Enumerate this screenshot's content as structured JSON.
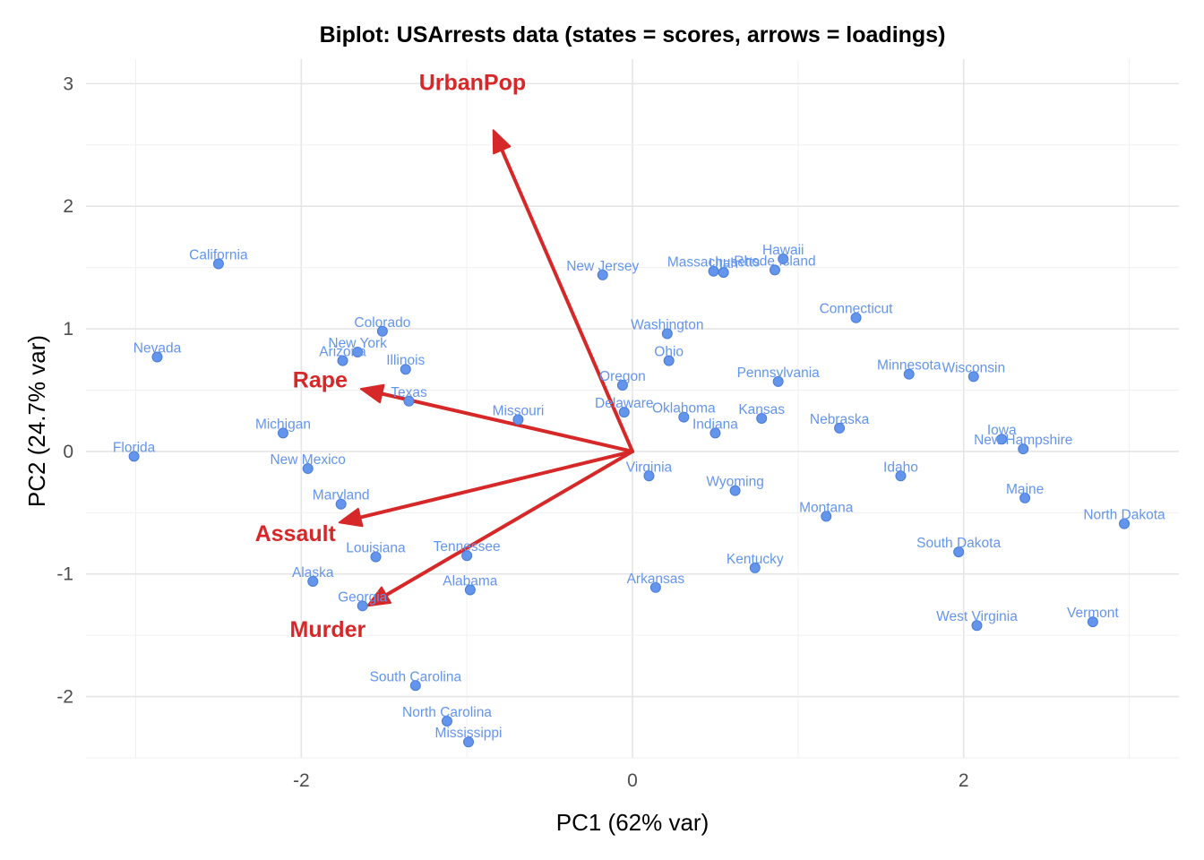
{
  "chart_data": {
    "type": "scatter",
    "title": "Biplot: USArrests data (states = scores, arrows = loadings)",
    "xlabel": "PC1 (62% var)",
    "ylabel": "PC2 (24.7% var)",
    "xlim": [
      -3.3,
      3.3
    ],
    "ylim": [
      -2.5,
      3.2
    ],
    "x_ticks": [
      -2,
      0,
      2
    ],
    "y_ticks": [
      -2,
      -1,
      0,
      1,
      2,
      3
    ],
    "grid": true,
    "colors": {
      "points": "#6495ED",
      "point_stroke": "#4a7bd6",
      "labels": "#6495ED",
      "arrows": "#D62828"
    },
    "states": [
      {
        "name": "California",
        "x": -2.5,
        "y": 1.53
      },
      {
        "name": "Nevada",
        "x": -2.87,
        "y": 0.77
      },
      {
        "name": "Florida",
        "x": -3.01,
        "y": -0.04
      },
      {
        "name": "Colorado",
        "x": -1.51,
        "y": 0.98
      },
      {
        "name": "New York",
        "x": -1.66,
        "y": 0.81
      },
      {
        "name": "Arizona",
        "x": -1.75,
        "y": 0.74
      },
      {
        "name": "Illinois",
        "x": -1.37,
        "y": 0.67
      },
      {
        "name": "Texas",
        "x": -1.35,
        "y": 0.41
      },
      {
        "name": "Michigan",
        "x": -2.11,
        "y": 0.15
      },
      {
        "name": "New Mexico",
        "x": -1.96,
        "y": -0.14
      },
      {
        "name": "Maryland",
        "x": -1.76,
        "y": -0.43
      },
      {
        "name": "Louisiana",
        "x": -1.55,
        "y": -0.86
      },
      {
        "name": "Alaska",
        "x": -1.93,
        "y": -1.06
      },
      {
        "name": "Georgia",
        "x": -1.63,
        "y": -1.26
      },
      {
        "name": "Tennessee",
        "x": -1.0,
        "y": -0.85
      },
      {
        "name": "Alabama",
        "x": -0.98,
        "y": -1.13
      },
      {
        "name": "South Carolina",
        "x": -1.31,
        "y": -1.91
      },
      {
        "name": "North Carolina",
        "x": -1.12,
        "y": -2.2
      },
      {
        "name": "Mississippi",
        "x": -0.99,
        "y": -2.37
      },
      {
        "name": "Missouri",
        "x": -0.69,
        "y": 0.26
      },
      {
        "name": "New Jersey",
        "x": -0.18,
        "y": 1.44
      },
      {
        "name": "Oregon",
        "x": -0.06,
        "y": 0.54
      },
      {
        "name": "Delaware",
        "x": -0.05,
        "y": 0.32
      },
      {
        "name": "Virginia",
        "x": 0.1,
        "y": -0.2
      },
      {
        "name": "Arkansas",
        "x": 0.14,
        "y": -1.11
      },
      {
        "name": "Washington",
        "x": 0.21,
        "y": 0.96
      },
      {
        "name": "Ohio",
        "x": 0.22,
        "y": 0.74
      },
      {
        "name": "Oklahoma",
        "x": 0.31,
        "y": 0.28
      },
      {
        "name": "Indiana",
        "x": 0.5,
        "y": 0.15
      },
      {
        "name": "Massachusetts",
        "x": 0.49,
        "y": 1.47
      },
      {
        "name": "Utah",
        "x": 0.55,
        "y": 1.46
      },
      {
        "name": "Rhode Island",
        "x": 0.86,
        "y": 1.48
      },
      {
        "name": "Hawaii",
        "x": 0.91,
        "y": 1.57
      },
      {
        "name": "Wyoming",
        "x": 0.62,
        "y": -0.32
      },
      {
        "name": "Kansas",
        "x": 0.78,
        "y": 0.27
      },
      {
        "name": "Pennsylvania",
        "x": 0.88,
        "y": 0.57
      },
      {
        "name": "Kentucky",
        "x": 0.74,
        "y": -0.95
      },
      {
        "name": "Montana",
        "x": 1.17,
        "y": -0.53
      },
      {
        "name": "Nebraska",
        "x": 1.25,
        "y": 0.19
      },
      {
        "name": "Connecticut",
        "x": 1.35,
        "y": 1.09
      },
      {
        "name": "Idaho",
        "x": 1.62,
        "y": -0.2
      },
      {
        "name": "Minnesota",
        "x": 1.67,
        "y": 0.63
      },
      {
        "name": "South Dakota",
        "x": 1.97,
        "y": -0.82
      },
      {
        "name": "Wisconsin",
        "x": 2.06,
        "y": 0.61
      },
      {
        "name": "West Virginia",
        "x": 2.08,
        "y": -1.42
      },
      {
        "name": "Iowa",
        "x": 2.23,
        "y": 0.1
      },
      {
        "name": "New Hampshire",
        "x": 2.36,
        "y": 0.02
      },
      {
        "name": "Maine",
        "x": 2.37,
        "y": -0.38
      },
      {
        "name": "Vermont",
        "x": 2.78,
        "y": -1.39
      },
      {
        "name": "North Dakota",
        "x": 2.97,
        "y": -0.59
      }
    ],
    "loadings": [
      {
        "name": "UrbanPop",
        "x": -0.84,
        "y": 2.62
      },
      {
        "name": "Rape",
        "x": -1.64,
        "y": 0.51
      },
      {
        "name": "Assault",
        "x": -1.77,
        "y": -0.58
      },
      {
        "name": "Murder",
        "x": -1.6,
        "y": -1.26
      }
    ]
  }
}
